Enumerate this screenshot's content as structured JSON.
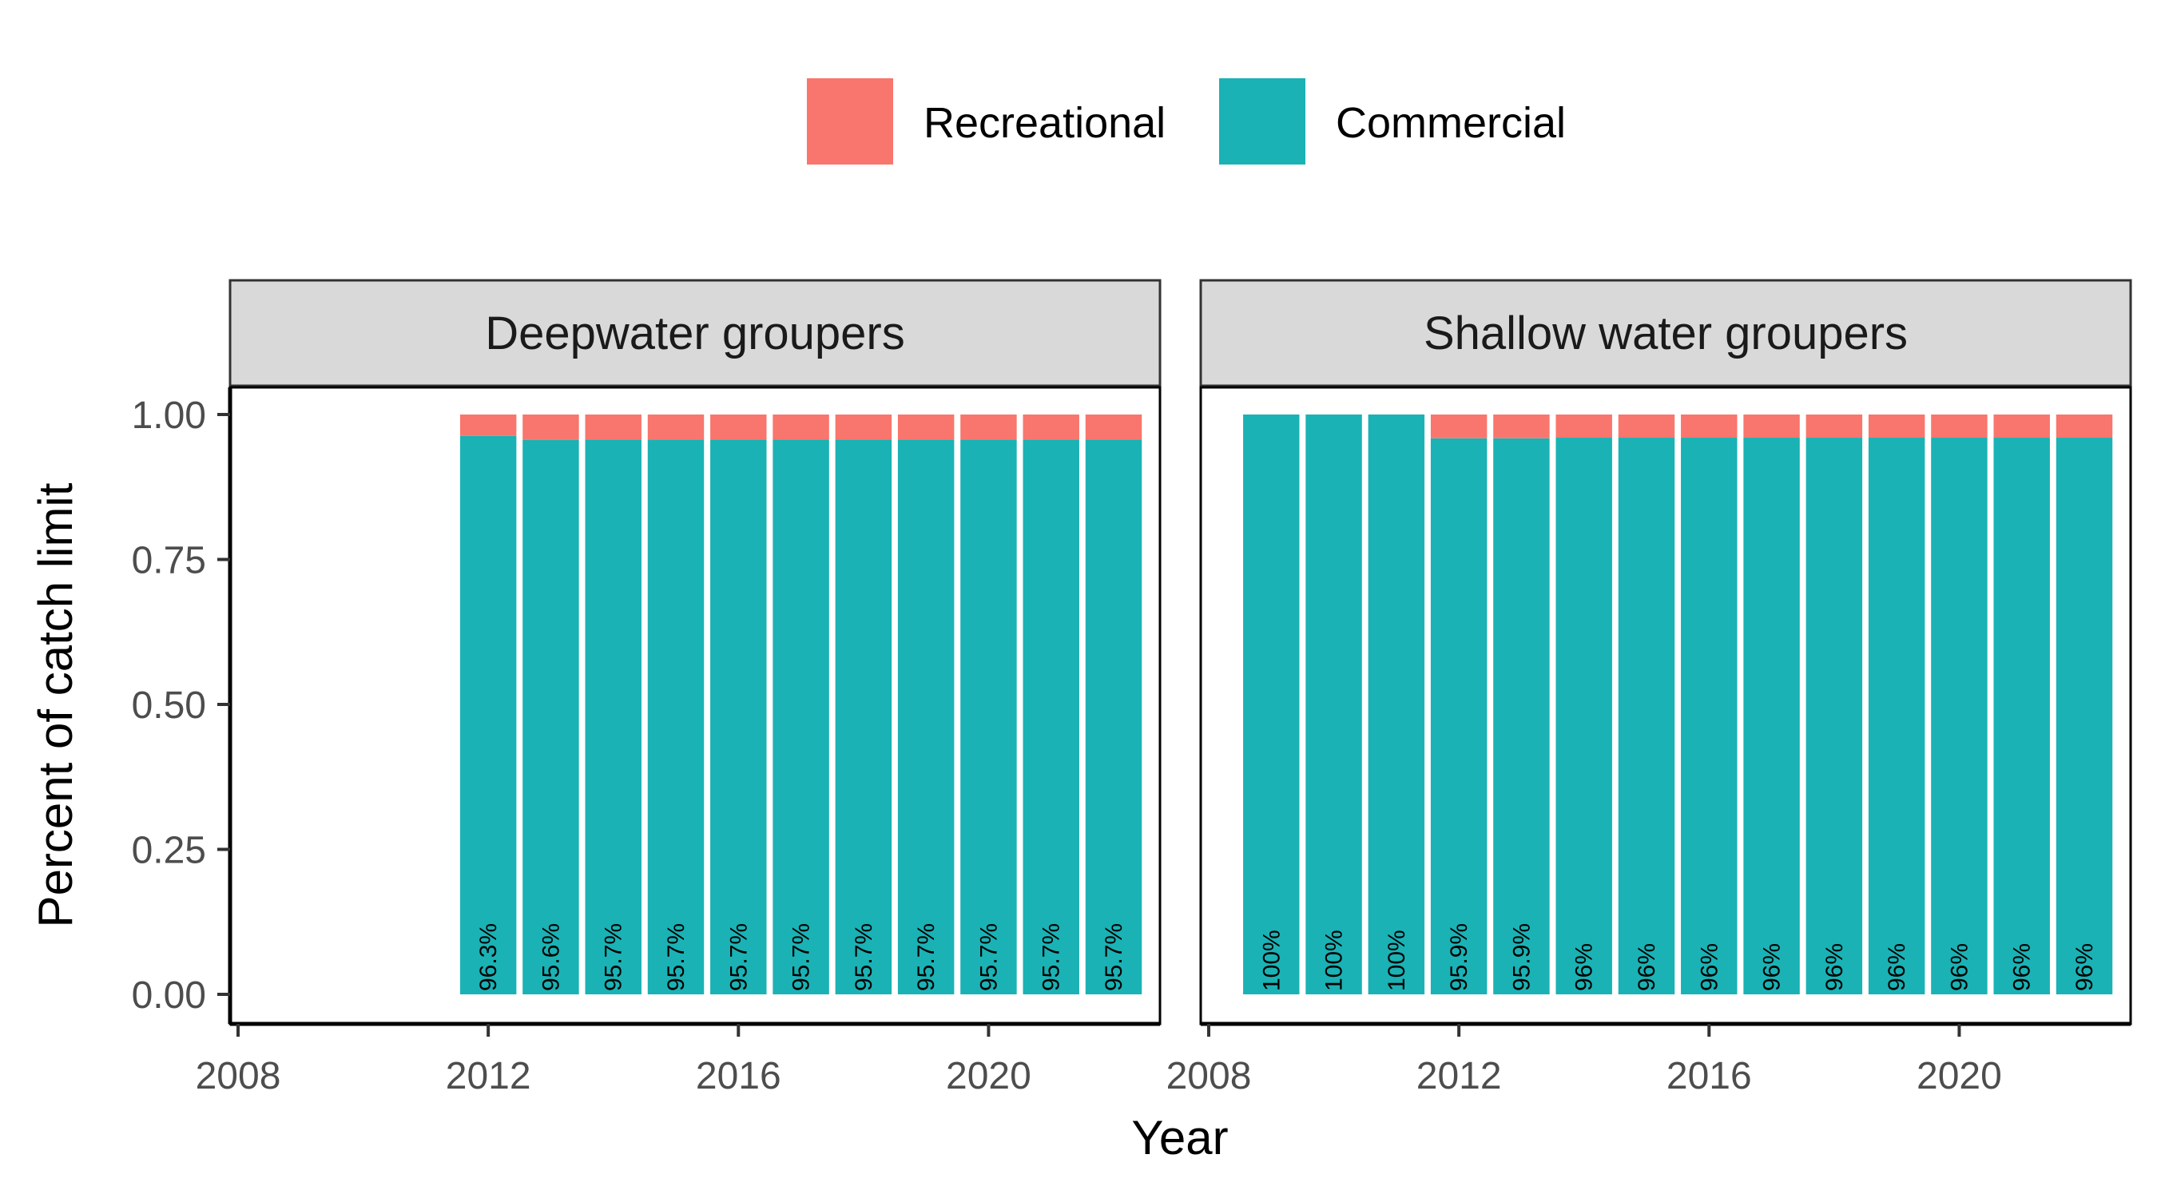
{
  "colors": {
    "recreational": "#F8766D",
    "commercial": "#1AB2B5"
  },
  "legend": [
    {
      "label": "Recreational",
      "color_key": "recreational"
    },
    {
      "label": "Commercial",
      "color_key": "commercial"
    }
  ],
  "chart_data": {
    "type": "bar",
    "stacked": true,
    "xlabel": "Year",
    "ylabel": "Percent of catch limit",
    "x_ticks": [
      2008,
      2012,
      2016,
      2020
    ],
    "y_ticks": [
      "0.00",
      "0.25",
      "0.50",
      "0.75",
      "1.00"
    ],
    "xlim": [
      2008,
      2022.5
    ],
    "ylim": [
      0,
      1
    ],
    "legend_position": "top",
    "panels": [
      {
        "title": "Deepwater groupers",
        "years": [
          2012,
          2013,
          2014,
          2015,
          2016,
          2017,
          2018,
          2019,
          2020,
          2021,
          2022
        ],
        "commercial": [
          0.963,
          0.956,
          0.957,
          0.957,
          0.957,
          0.957,
          0.957,
          0.957,
          0.957,
          0.957,
          0.957
        ],
        "recreational": [
          0.037,
          0.044,
          0.043,
          0.043,
          0.043,
          0.043,
          0.043,
          0.043,
          0.043,
          0.043,
          0.043
        ],
        "labels": [
          "96.3%",
          "95.6%",
          "95.7%",
          "95.7%",
          "95.7%",
          "95.7%",
          "95.7%",
          "95.7%",
          "95.7%",
          "95.7%",
          "95.7%"
        ]
      },
      {
        "title": "Shallow water groupers",
        "years": [
          2009,
          2010,
          2011,
          2012,
          2013,
          2014,
          2015,
          2016,
          2017,
          2018,
          2019,
          2020,
          2021,
          2022
        ],
        "commercial": [
          1.0,
          1.0,
          1.0,
          0.959,
          0.959,
          0.96,
          0.96,
          0.96,
          0.96,
          0.96,
          0.96,
          0.96,
          0.96,
          0.96
        ],
        "recreational": [
          0,
          0,
          0,
          0.041,
          0.041,
          0.04,
          0.04,
          0.04,
          0.04,
          0.04,
          0.04,
          0.04,
          0.04,
          0.04
        ],
        "labels": [
          "100%",
          "100%",
          "100%",
          "95.9%",
          "95.9%",
          "96%",
          "96%",
          "96%",
          "96%",
          "96%",
          "96%",
          "96%",
          "96%",
          "96%"
        ]
      }
    ]
  }
}
